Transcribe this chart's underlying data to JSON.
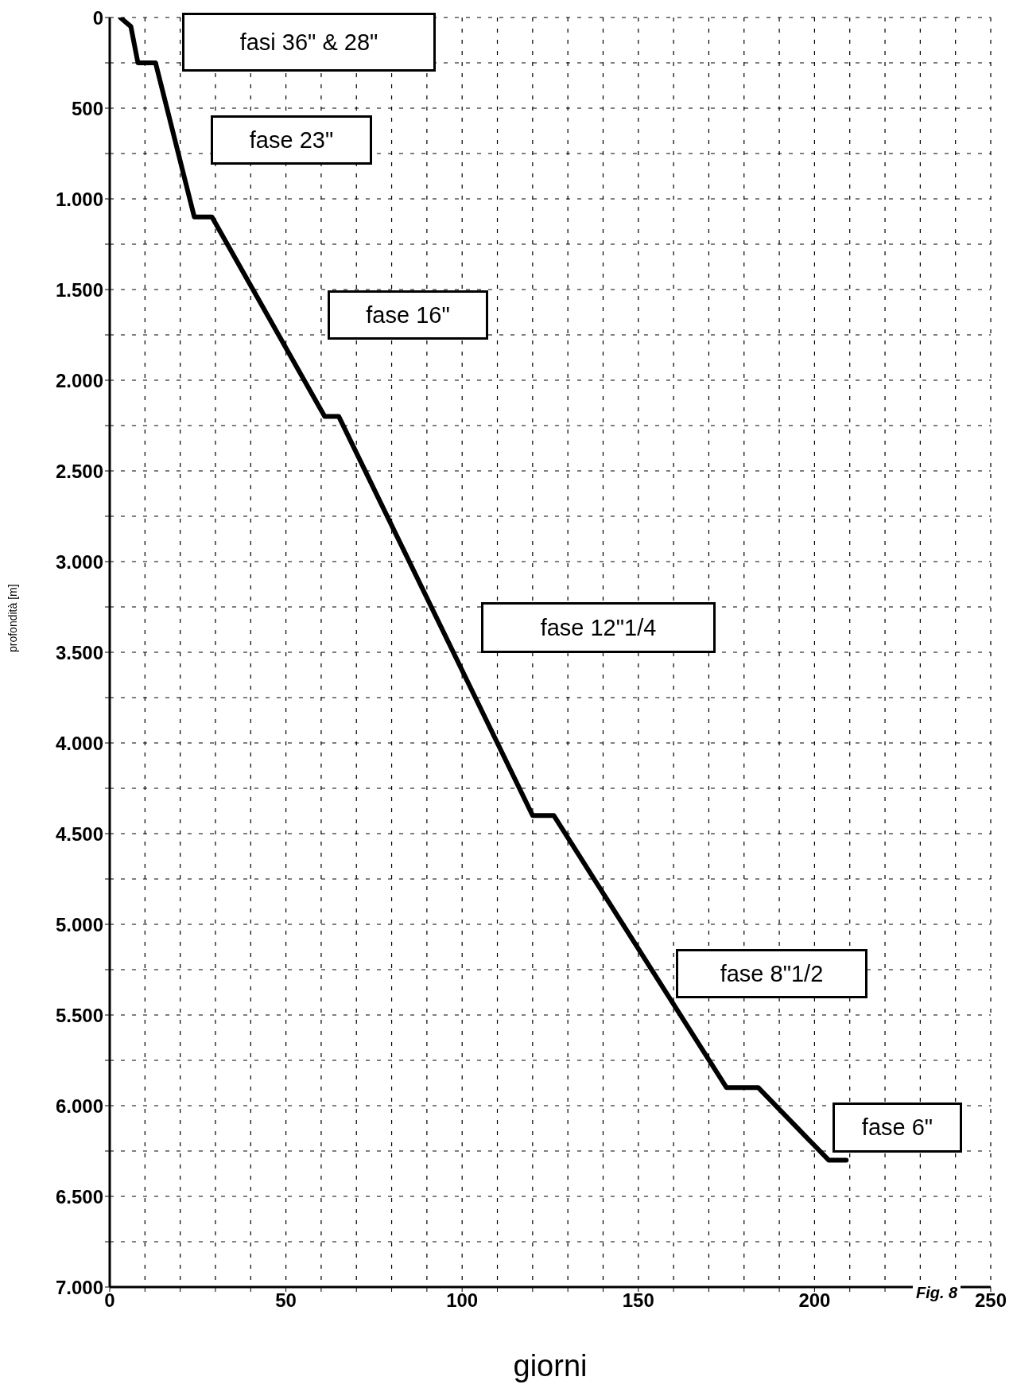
{
  "chart_data": {
    "type": "line",
    "xlabel": "giorni",
    "ylabel": "profondità [m]",
    "series": [
      {
        "color": "#000000",
        "x": [
          3,
          6,
          8,
          13,
          24,
          29,
          61,
          65,
          120,
          126,
          175,
          184,
          204,
          209
        ],
        "values": [
          0,
          50,
          250,
          250,
          1100,
          1100,
          2200,
          2200,
          4400,
          4400,
          5900,
          5900,
          6300,
          6300
        ]
      }
    ],
    "xlim": [
      0,
      250
    ],
    "ylim": [
      7000,
      0
    ],
    "xticks": [
      0,
      {
        "value": 10,
        "label": null
      },
      {
        "value": 20,
        "label": null
      },
      {
        "value": 30,
        "label": null
      },
      {
        "value": 40,
        "label": null
      },
      50,
      {
        "value": 60,
        "label": null
      },
      {
        "value": 70,
        "label": null
      },
      {
        "value": 80,
        "label": null
      },
      {
        "value": 90,
        "label": null
      },
      100,
      {
        "value": 110,
        "label": null
      },
      {
        "value": 120,
        "label": null
      },
      {
        "value": 130,
        "label": null
      },
      {
        "value": 140,
        "label": null
      },
      150,
      {
        "value": 160,
        "label": null
      },
      {
        "value": 170,
        "label": null
      },
      {
        "value": 180,
        "label": null
      },
      {
        "value": 190,
        "label": null
      },
      200,
      {
        "value": 210,
        "label": null
      },
      {
        "value": 220,
        "label": null
      },
      {
        "value": 230,
        "label": null
      },
      {
        "value": 240,
        "label": null
      },
      250
    ],
    "yticks": [
      0,
      {
        "value": 250,
        "label": null
      },
      {
        "value": 500,
        "label": "500"
      },
      {
        "value": 750,
        "label": null
      },
      {
        "value": 1000,
        "label": "1.000"
      },
      {
        "value": 1250,
        "label": null
      },
      {
        "value": 1500,
        "label": "1.500"
      },
      {
        "value": 1750,
        "label": null
      },
      {
        "value": 2000,
        "label": "2.000"
      },
      {
        "value": 2250,
        "label": null
      },
      {
        "value": 2500,
        "label": "2.500"
      },
      {
        "value": 2750,
        "label": null
      },
      {
        "value": 3000,
        "label": "3.000"
      },
      {
        "value": 3250,
        "label": null
      },
      {
        "value": 3500,
        "label": "3.500"
      },
      {
        "value": 3750,
        "label": null
      },
      {
        "value": 4000,
        "label": "4.000"
      },
      {
        "value": 4250,
        "label": null
      },
      {
        "value": 4500,
        "label": "4.500"
      },
      {
        "value": 4750,
        "label": null
      },
      {
        "value": 5000,
        "label": "5.000"
      },
      {
        "value": 5250,
        "label": null
      },
      {
        "value": 5500,
        "label": "5.500"
      },
      {
        "value": 5750,
        "label": null
      },
      {
        "value": 6000,
        "label": "6.000"
      },
      {
        "value": 6250,
        "label": null
      },
      {
        "value": 6500,
        "label": "6.500"
      },
      {
        "value": 6750,
        "label": null
      },
      {
        "value": 7000,
        "label": "7.000"
      }
    ],
    "grid": true,
    "marker": "none",
    "line_style": "solid",
    "annotations": [
      "fasi 36\" & 28\"",
      "fase 23\"",
      "fase 16\"",
      "fase 12\"1/4",
      "fase 8\"1/2",
      "fase 6\"",
      "Fig. 8"
    ]
  }
}
